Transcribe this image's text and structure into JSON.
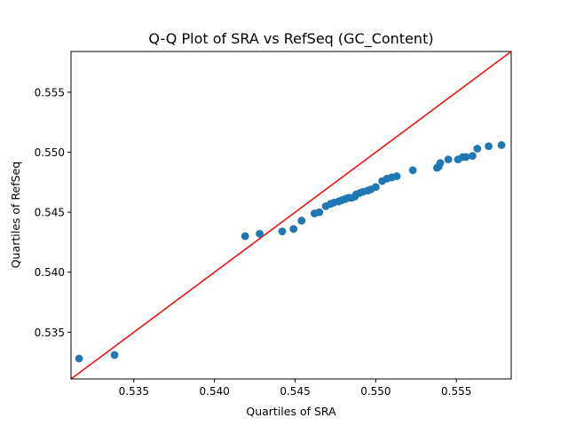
{
  "chart_data": {
    "type": "scatter",
    "title": "Q-Q Plot of SRA vs RefSeq (GC_Content)",
    "xlabel": "Quartiles of SRA",
    "ylabel": "Quartiles of RefSeq",
    "xlim": [
      0.5311,
      0.5584
    ],
    "ylim": [
      0.5311,
      0.5584
    ],
    "xticks": [
      0.535,
      0.54,
      0.545,
      0.55,
      0.555
    ],
    "xtick_labels": [
      "0.535",
      "0.540",
      "0.545",
      "0.550",
      "0.555"
    ],
    "yticks": [
      0.535,
      0.54,
      0.545,
      0.55,
      0.555
    ],
    "ytick_labels": [
      "0.535",
      "0.540",
      "0.545",
      "0.550",
      "0.555"
    ],
    "grid": false,
    "point_color": "#1f77b4",
    "reference_line": {
      "from": [
        0.5311,
        0.5311
      ],
      "to": [
        0.5584,
        0.5584
      ],
      "color": "#ff0000"
    },
    "points": [
      {
        "x": 0.5316,
        "y": 0.5328
      },
      {
        "x": 0.5338,
        "y": 0.5331
      },
      {
        "x": 0.5419,
        "y": 0.543
      },
      {
        "x": 0.5428,
        "y": 0.5432
      },
      {
        "x": 0.5442,
        "y": 0.5434
      },
      {
        "x": 0.5449,
        "y": 0.5436
      },
      {
        "x": 0.5454,
        "y": 0.5443
      },
      {
        "x": 0.5462,
        "y": 0.5449
      },
      {
        "x": 0.5465,
        "y": 0.545
      },
      {
        "x": 0.5469,
        "y": 0.5455
      },
      {
        "x": 0.5472,
        "y": 0.5457
      },
      {
        "x": 0.5474,
        "y": 0.5458
      },
      {
        "x": 0.5477,
        "y": 0.5459
      },
      {
        "x": 0.5479,
        "y": 0.546
      },
      {
        "x": 0.5481,
        "y": 0.5461
      },
      {
        "x": 0.5483,
        "y": 0.5462
      },
      {
        "x": 0.5485,
        "y": 0.5462
      },
      {
        "x": 0.5487,
        "y": 0.5463
      },
      {
        "x": 0.5488,
        "y": 0.5465
      },
      {
        "x": 0.549,
        "y": 0.5466
      },
      {
        "x": 0.5492,
        "y": 0.5467
      },
      {
        "x": 0.5495,
        "y": 0.5468
      },
      {
        "x": 0.5497,
        "y": 0.5469
      },
      {
        "x": 0.55,
        "y": 0.5471
      },
      {
        "x": 0.5504,
        "y": 0.5476
      },
      {
        "x": 0.5507,
        "y": 0.5478
      },
      {
        "x": 0.551,
        "y": 0.5479
      },
      {
        "x": 0.5513,
        "y": 0.548
      },
      {
        "x": 0.5523,
        "y": 0.5485
      },
      {
        "x": 0.5538,
        "y": 0.5487
      },
      {
        "x": 0.5539,
        "y": 0.5488
      },
      {
        "x": 0.554,
        "y": 0.5491
      },
      {
        "x": 0.5545,
        "y": 0.5494
      },
      {
        "x": 0.5551,
        "y": 0.5494
      },
      {
        "x": 0.5554,
        "y": 0.5496
      },
      {
        "x": 0.5556,
        "y": 0.5496
      },
      {
        "x": 0.556,
        "y": 0.5497
      },
      {
        "x": 0.5563,
        "y": 0.5503
      },
      {
        "x": 0.557,
        "y": 0.5505
      },
      {
        "x": 0.5578,
        "y": 0.5506
      }
    ]
  }
}
